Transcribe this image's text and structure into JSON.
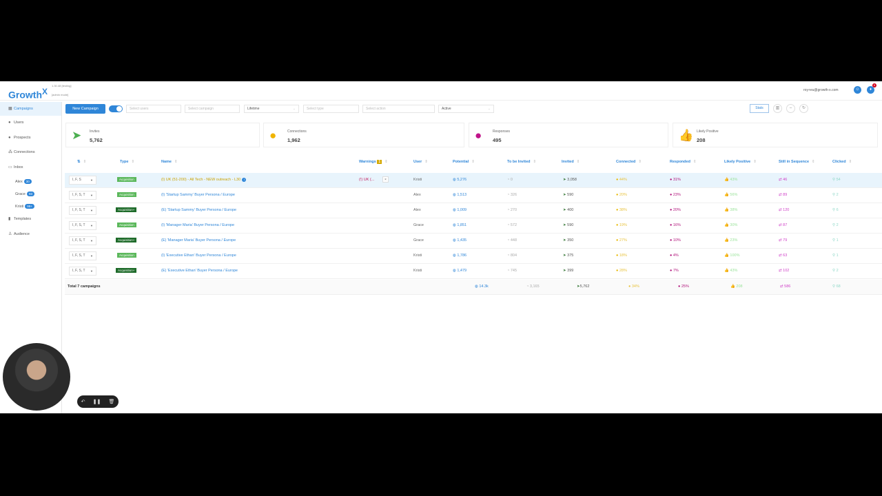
{
  "app": {
    "logo": "Growth",
    "logo_x": "X",
    "version": "1.30.48 [testing]",
    "mode": "[admin mode]",
    "email": "roy+eu@growth-x.com",
    "notifications": "6"
  },
  "sidebar": {
    "items": [
      {
        "label": "Campaigns",
        "icon": "grid-icon"
      },
      {
        "label": "Users",
        "icon": "users-icon"
      },
      {
        "label": "Prospects",
        "icon": "prospects-icon"
      },
      {
        "label": "Connections",
        "icon": "network-icon"
      },
      {
        "label": "Inbox",
        "icon": "inbox-icon"
      },
      {
        "label": "Templates",
        "icon": "file-icon"
      },
      {
        "label": "Audience",
        "icon": "audience-icon"
      }
    ],
    "inbox_users": [
      {
        "name": "Alex",
        "count": "30"
      },
      {
        "name": "Grace",
        "count": "93"
      },
      {
        "name": "Kristi",
        "count": "99+"
      }
    ]
  },
  "toolbar": {
    "new_campaign": "New Campaign",
    "select_users": "Select users",
    "select_campaign": "Select campaign",
    "period": "Lifetime",
    "select_type": "Select type",
    "select_action": "Select action",
    "status": "Active",
    "stats": "Stats"
  },
  "cards": [
    {
      "label": "Invites",
      "value": "5,762",
      "color": "#4caf50"
    },
    {
      "label": "Connections",
      "value": "1,962",
      "color": "#f0b400"
    },
    {
      "label": "Responses",
      "value": "495",
      "color": "#c0148a"
    },
    {
      "label": "Likely Positive",
      "value": "208",
      "color": "#6fd06f"
    }
  ],
  "table": {
    "headers": {
      "actions": "⇅",
      "type": "Type",
      "name": "Name",
      "warnings": "Warnings",
      "warnings_count": "1",
      "user": "User",
      "potential": "Potential",
      "to_be_invited": "To be Invited",
      "invited": "Invited",
      "connected": "Connected",
      "responded": "Responded",
      "likely_positive": "Likely Positive",
      "still_in_sequence": "Still in Sequence",
      "clicked": "Clicked"
    },
    "rows": [
      {
        "actions": "I, F, S",
        "type": "Acquisition",
        "name": "(I) UK (51-200) - All Tech - NEW outreach - L30",
        "warning": "(!) UK (...",
        "user": "Kristi",
        "potential": "5,276",
        "to_be_invited": "0",
        "invited": "3,058",
        "connected": "44%",
        "responded": "31%",
        "likely_positive": "43%",
        "still_in_sequence": "46",
        "clicked": "54"
      },
      {
        "actions": "I, F, S, T",
        "type": "Acquisition",
        "name": "(I) 'Startup Sammy' Buyer Persona / Europe",
        "user": "Alex",
        "potential": "1,513",
        "to_be_invited": "326",
        "invited": "590",
        "connected": "20%",
        "responded": "23%",
        "likely_positive": "56%",
        "still_in_sequence": "89",
        "clicked": "2"
      },
      {
        "actions": "I, F, S, T",
        "type": "Acquisition+",
        "name": "(E) 'Startup Sammy' Buyer Persona / Europe",
        "user": "Alex",
        "potential": "1,009",
        "to_be_invited": "270",
        "invited": "400",
        "connected": "38%",
        "responded": "20%",
        "likely_positive": "38%",
        "still_in_sequence": "120",
        "clicked": "6"
      },
      {
        "actions": "I, F, S, T",
        "type": "Acquisition",
        "name": "(I) 'Manager Maria' Buyer Persona / Europe",
        "user": "Grace",
        "potential": "1,851",
        "to_be_invited": "572",
        "invited": "590",
        "connected": "19%",
        "responded": "16%",
        "likely_positive": "30%",
        "still_in_sequence": "87",
        "clicked": "2"
      },
      {
        "actions": "I, F, S, T",
        "type": "Acquisition+",
        "name": "(E) 'Manager Maria' Buyer Persona / Europe",
        "user": "Grace",
        "potential": "1,435",
        "to_be_invited": "448",
        "invited": "350",
        "connected": "27%",
        "responded": "10%",
        "likely_positive": "23%",
        "still_in_sequence": "79",
        "clicked": "1"
      },
      {
        "actions": "I, F, S, T",
        "type": "Acquisition",
        "name": "(I) 'Executive Ethan' Buyer Persona / Europe",
        "user": "Kristi",
        "potential": "1,786",
        "to_be_invited": "804",
        "invited": "375",
        "connected": "18%",
        "responded": "4%",
        "likely_positive": "100%",
        "still_in_sequence": "63",
        "clicked": "1"
      },
      {
        "actions": "I, F, S, T",
        "type": "Acquisition+",
        "name": "(E) 'Executive Ethan' Buyer Persona / Europe",
        "user": "Kristi",
        "potential": "1,479",
        "to_be_invited": "745",
        "invited": "399",
        "connected": "28%",
        "responded": "7%",
        "likely_positive": "43%",
        "still_in_sequence": "102",
        "clicked": "2"
      }
    ],
    "totals": {
      "label": "Total 7 campaigns",
      "potential": "14.3k",
      "to_be_invited": "3,165",
      "invited": "5,762",
      "connected": "34%",
      "responded": "25%",
      "likely_positive": "208",
      "still_in_sequence": "586",
      "clicked": "68"
    }
  }
}
